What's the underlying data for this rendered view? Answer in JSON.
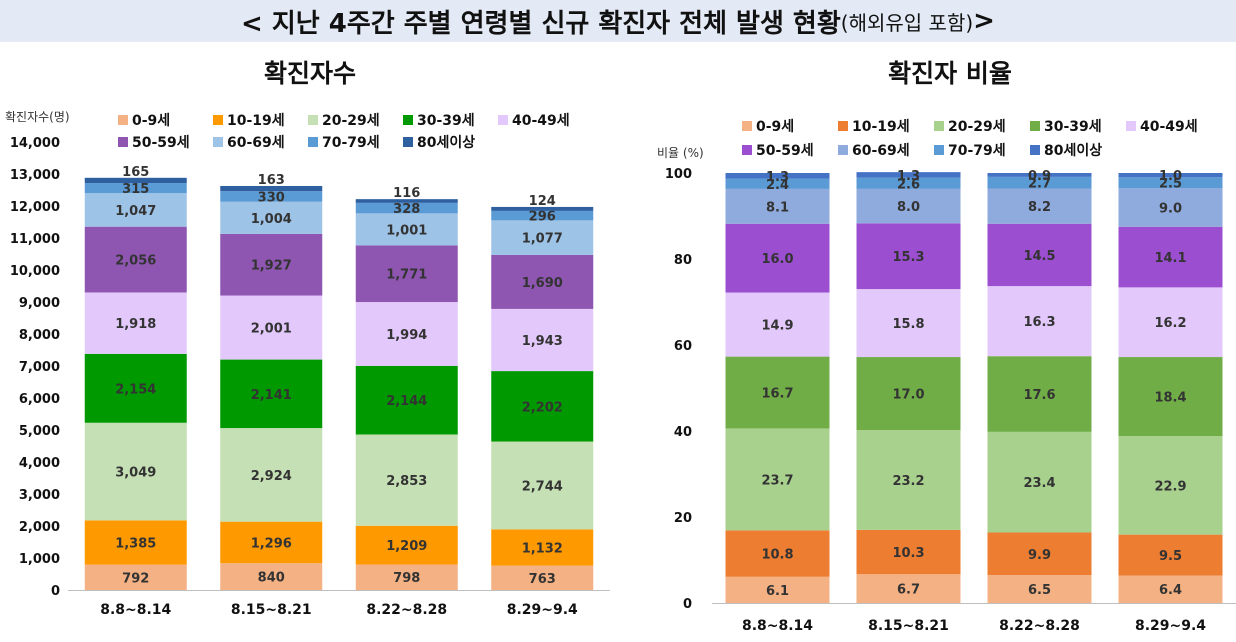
{
  "header": {
    "title": "< 지난 4주간 주별 연령별 신규 확진자 전체 발생 현황",
    "subtitle": "(해외유입 포함)",
    "title_end": ">"
  },
  "series_colors": [
    "#f4b183",
    "#ff9900",
    "#c5e0b4",
    "#009900",
    "#e2c8fb",
    "#8e56b1",
    "#9dc3e6",
    "#5b9bd5",
    "#2e5f9e"
  ],
  "series_colors_right": [
    "#f4b183",
    "#ed7d31",
    "#a9d18e",
    "#70ad47",
    "#e2c8fb",
    "#9b4fd0",
    "#8faadc",
    "#5b9bd5",
    "#4472c4"
  ],
  "chart_data": [
    {
      "type": "bar",
      "stacked": true,
      "title": "확진자수",
      "ylabel": "확진자수(명)",
      "categories": [
        "8.8~8.14",
        "8.15~8.21",
        "8.22~8.28",
        "8.29~9.4"
      ],
      "ylim": [
        0,
        14000
      ],
      "yticks": [
        "0",
        "1,000",
        "2,000",
        "3,000",
        "4,000",
        "5,000",
        "6,000",
        "7,000",
        "8,000",
        "9,000",
        "10,000",
        "11,000",
        "12,000",
        "13,000",
        "14,000"
      ],
      "legend_position": "top",
      "series": [
        {
          "name": "0-9세",
          "values": [
            792,
            840,
            798,
            763
          ],
          "labels": [
            "792",
            "840",
            "798",
            "763"
          ]
        },
        {
          "name": "10-19세",
          "values": [
            1385,
            1296,
            1209,
            1132
          ],
          "labels": [
            "1,385",
            "1,296",
            "1,209",
            "1,132"
          ]
        },
        {
          "name": "20-29세",
          "values": [
            3049,
            2924,
            2853,
            2744
          ],
          "labels": [
            "3,049",
            "2,924",
            "2,853",
            "2,744"
          ]
        },
        {
          "name": "30-39세",
          "values": [
            2154,
            2141,
            2144,
            2202
          ],
          "labels": [
            "2,154",
            "2,141",
            "2,144",
            "2,202"
          ]
        },
        {
          "name": "40-49세",
          "values": [
            1918,
            2001,
            1994,
            1943
          ],
          "labels": [
            "1,918",
            "2,001",
            "1,994",
            "1,943"
          ]
        },
        {
          "name": "50-59세",
          "values": [
            2056,
            1927,
            1771,
            1690
          ],
          "labels": [
            "2,056",
            "1,927",
            "1,771",
            "1,690"
          ]
        },
        {
          "name": "60-69세",
          "values": [
            1047,
            1004,
            1001,
            1077
          ],
          "labels": [
            "1,047",
            "1,004",
            "1,001",
            "1,077"
          ]
        },
        {
          "name": "70-79세",
          "values": [
            315,
            330,
            328,
            296
          ],
          "labels": [
            "315",
            "330",
            "328",
            "296"
          ]
        },
        {
          "name": "80세이상",
          "values": [
            165,
            163,
            116,
            124
          ],
          "labels": [
            "165",
            "163",
            "116",
            "124"
          ]
        }
      ]
    },
    {
      "type": "bar",
      "stacked": true,
      "title": "확진자 비율",
      "ylabel": "비율 (%)",
      "categories": [
        "8.8~8.14",
        "8.15~8.21",
        "8.22~8.28",
        "8.29~9.4"
      ],
      "ylim": [
        0,
        100
      ],
      "yticks": [
        "0",
        "20",
        "40",
        "60",
        "80",
        "100"
      ],
      "legend_position": "top",
      "series": [
        {
          "name": "0-9세",
          "values": [
            6.1,
            6.7,
            6.5,
            6.4
          ],
          "labels": [
            "6.1",
            "6.7",
            "6.5",
            "6.4"
          ]
        },
        {
          "name": "10-19세",
          "values": [
            10.8,
            10.3,
            9.9,
            9.5
          ],
          "labels": [
            "10.8",
            "10.3",
            "9.9",
            "9.5"
          ]
        },
        {
          "name": "20-29세",
          "values": [
            23.7,
            23.2,
            23.4,
            22.9
          ],
          "labels": [
            "23.7",
            "23.2",
            "23.4",
            "22.9"
          ]
        },
        {
          "name": "30-39세",
          "values": [
            16.7,
            17.0,
            17.6,
            18.4
          ],
          "labels": [
            "16.7",
            "17.0",
            "17.6",
            "18.4"
          ]
        },
        {
          "name": "40-49세",
          "values": [
            14.9,
            15.8,
            16.3,
            16.2
          ],
          "labels": [
            "14.9",
            "15.8",
            "16.3",
            "16.2"
          ]
        },
        {
          "name": "50-59세",
          "values": [
            16.0,
            15.3,
            14.5,
            14.1
          ],
          "labels": [
            "16.0",
            "15.3",
            "14.5",
            "14.1"
          ]
        },
        {
          "name": "60-69세",
          "values": [
            8.1,
            8.0,
            8.2,
            9.0
          ],
          "labels": [
            "8.1",
            "8.0",
            "8.2",
            "9.0"
          ]
        },
        {
          "name": "70-79세",
          "values": [
            2.4,
            2.6,
            2.7,
            2.5
          ],
          "labels": [
            "2.4",
            "2.6",
            "2.7",
            "2.5"
          ]
        },
        {
          "name": "80세이상",
          "values": [
            1.3,
            1.3,
            0.9,
            1.0
          ],
          "labels": [
            "1.3",
            "1.3",
            "0.9",
            "1.0"
          ]
        }
      ]
    }
  ]
}
